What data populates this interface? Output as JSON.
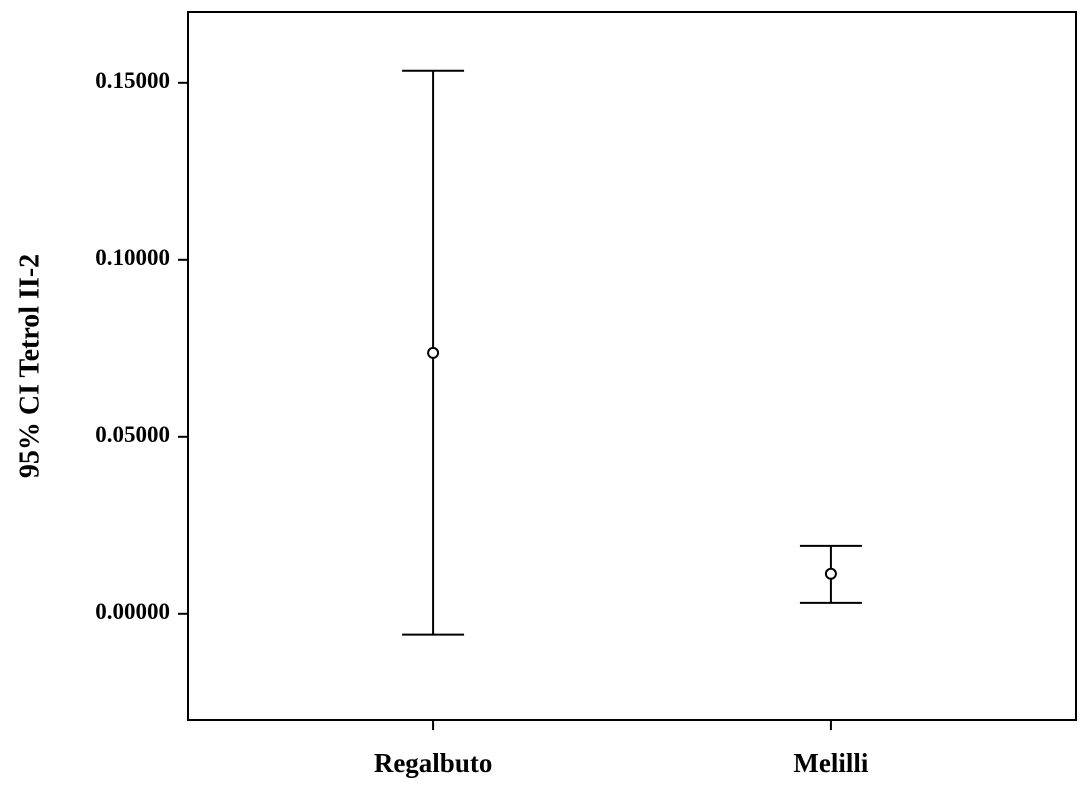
{
  "chart_data": {
    "type": "errorbar",
    "y_label": "95% CI Tetrol II-2",
    "categories": [
      "Regalbuto",
      "Melilli"
    ],
    "values": [
      0.0737,
      0.0113
    ],
    "lower": [
      -0.0059,
      0.0031
    ],
    "upper": [
      0.1534,
      0.0192
    ],
    "color": "#000000",
    "ylim": [
      -0.03,
      0.17
    ],
    "yticks": [
      {
        "value": 0,
        "label": "0.00000"
      },
      {
        "value": 0.05,
        "label": "0.05000"
      },
      {
        "value": 0.1,
        "label": "0.10000"
      },
      {
        "value": 0.15,
        "label": "0.15000"
      }
    ]
  }
}
